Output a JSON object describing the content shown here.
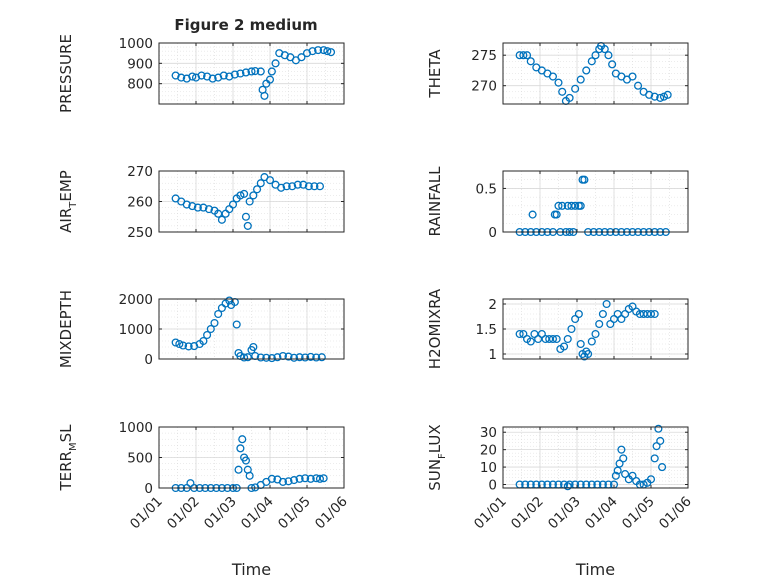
{
  "figure": {
    "title": "Figure 2 medium"
  },
  "x_axis": {
    "label": "Time",
    "ticks": [
      "01/01",
      "01/02",
      "01/03",
      "01/04",
      "01/05",
      "01/06"
    ]
  },
  "colors": {
    "marker": "#0072BD",
    "grid": "#d9d9d9",
    "axis": "#262626"
  },
  "chart_data": [
    {
      "type": "scatter",
      "id": "pressure",
      "ylabel": {
        "main": "PRESSURE",
        "sub": "",
        "tail": ""
      },
      "ylim": [
        700,
        1000
      ],
      "yticks": [
        800,
        900,
        1000
      ],
      "xlim": [
        0,
        5
      ],
      "grid": true,
      "points": [
        [
          0.45,
          840
        ],
        [
          0.6,
          830
        ],
        [
          0.75,
          825
        ],
        [
          0.9,
          835
        ],
        [
          1.0,
          830
        ],
        [
          1.15,
          840
        ],
        [
          1.3,
          835
        ],
        [
          1.45,
          825
        ],
        [
          1.6,
          830
        ],
        [
          1.75,
          840
        ],
        [
          1.9,
          835
        ],
        [
          2.05,
          845
        ],
        [
          2.2,
          850
        ],
        [
          2.35,
          855
        ],
        [
          2.5,
          860
        ],
        [
          2.6,
          862
        ],
        [
          2.75,
          860
        ],
        [
          2.8,
          770
        ],
        [
          2.85,
          740
        ],
        [
          2.9,
          800
        ],
        [
          3.0,
          820
        ],
        [
          3.05,
          860
        ],
        [
          3.15,
          900
        ],
        [
          3.25,
          950
        ],
        [
          3.4,
          940
        ],
        [
          3.55,
          930
        ],
        [
          3.7,
          915
        ],
        [
          3.85,
          930
        ],
        [
          4.0,
          950
        ],
        [
          4.15,
          960
        ],
        [
          4.3,
          965
        ],
        [
          4.45,
          965
        ],
        [
          4.55,
          960
        ],
        [
          4.65,
          955
        ]
      ]
    },
    {
      "type": "scatter",
      "id": "theta",
      "ylabel": {
        "main": "THETA",
        "sub": "",
        "tail": ""
      },
      "ylim": [
        267,
        277
      ],
      "yticks": [
        270,
        275
      ],
      "xlim": [
        0,
        5
      ],
      "grid": true,
      "points": [
        [
          0.45,
          275
        ],
        [
          0.55,
          275
        ],
        [
          0.65,
          275
        ],
        [
          0.75,
          274
        ],
        [
          0.9,
          273
        ],
        [
          1.05,
          272.5
        ],
        [
          1.2,
          272
        ],
        [
          1.35,
          271.5
        ],
        [
          1.5,
          270.5
        ],
        [
          1.6,
          269
        ],
        [
          1.7,
          267.5
        ],
        [
          1.8,
          268
        ],
        [
          1.95,
          269.5
        ],
        [
          2.1,
          271
        ],
        [
          2.25,
          272.5
        ],
        [
          2.4,
          274
        ],
        [
          2.5,
          275
        ],
        [
          2.6,
          276
        ],
        [
          2.65,
          276.5
        ],
        [
          2.75,
          276
        ],
        [
          2.85,
          275
        ],
        [
          2.95,
          273.5
        ],
        [
          3.05,
          272
        ],
        [
          3.2,
          271.5
        ],
        [
          3.35,
          271
        ],
        [
          3.5,
          271.5
        ],
        [
          3.65,
          270
        ],
        [
          3.8,
          269
        ],
        [
          3.95,
          268.5
        ],
        [
          4.1,
          268.2
        ],
        [
          4.25,
          268
        ],
        [
          4.35,
          268.2
        ],
        [
          4.45,
          268.5
        ]
      ]
    },
    {
      "type": "scatter",
      "id": "air_temp",
      "ylabel": {
        "main": "AIR",
        "sub": "T",
        "tail": "EMP"
      },
      "ylim": [
        250,
        270
      ],
      "yticks": [
        250,
        260,
        270
      ],
      "xlim": [
        0,
        5
      ],
      "grid": true,
      "points": [
        [
          0.45,
          261
        ],
        [
          0.6,
          260
        ],
        [
          0.75,
          259
        ],
        [
          0.9,
          258.5
        ],
        [
          1.05,
          258
        ],
        [
          1.2,
          258
        ],
        [
          1.35,
          257.5
        ],
        [
          1.5,
          257
        ],
        [
          1.6,
          256
        ],
        [
          1.7,
          254
        ],
        [
          1.8,
          256
        ],
        [
          1.9,
          257.5
        ],
        [
          2.0,
          259
        ],
        [
          2.1,
          261
        ],
        [
          2.2,
          262
        ],
        [
          2.3,
          262.5
        ],
        [
          2.35,
          255
        ],
        [
          2.4,
          252
        ],
        [
          2.45,
          260
        ],
        [
          2.55,
          262
        ],
        [
          2.65,
          264
        ],
        [
          2.75,
          266
        ],
        [
          2.85,
          268
        ],
        [
          3.0,
          267
        ],
        [
          3.15,
          265.5
        ],
        [
          3.3,
          264.5
        ],
        [
          3.45,
          265
        ],
        [
          3.6,
          265
        ],
        [
          3.75,
          265.5
        ],
        [
          3.9,
          265.5
        ],
        [
          4.05,
          265
        ],
        [
          4.2,
          265
        ],
        [
          4.35,
          265
        ]
      ]
    },
    {
      "type": "scatter",
      "id": "rainfall",
      "ylabel": {
        "main": "RAINFALL",
        "sub": "",
        "tail": ""
      },
      "ylim": [
        0,
        0.7
      ],
      "yticks": [
        0,
        0.5
      ],
      "xlim": [
        0,
        5
      ],
      "grid": true,
      "points": [
        [
          0.45,
          0
        ],
        [
          0.6,
          0
        ],
        [
          0.75,
          0
        ],
        [
          0.8,
          0.2
        ],
        [
          0.9,
          0
        ],
        [
          1.05,
          0
        ],
        [
          1.2,
          0
        ],
        [
          1.35,
          0
        ],
        [
          1.4,
          0.2
        ],
        [
          1.45,
          0.2
        ],
        [
          1.5,
          0.3
        ],
        [
          1.55,
          0
        ],
        [
          1.6,
          0.3
        ],
        [
          1.7,
          0
        ],
        [
          1.75,
          0.3
        ],
        [
          1.8,
          0
        ],
        [
          1.85,
          0.3
        ],
        [
          1.9,
          0
        ],
        [
          1.95,
          0.3
        ],
        [
          2.05,
          0.3
        ],
        [
          2.1,
          0.3
        ],
        [
          2.15,
          0.6
        ],
        [
          2.2,
          0.6
        ],
        [
          2.3,
          0
        ],
        [
          2.45,
          0
        ],
        [
          2.6,
          0
        ],
        [
          2.75,
          0
        ],
        [
          2.9,
          0
        ],
        [
          3.05,
          0
        ],
        [
          3.2,
          0
        ],
        [
          3.35,
          0
        ],
        [
          3.5,
          0
        ],
        [
          3.65,
          0
        ],
        [
          3.8,
          0
        ],
        [
          3.95,
          0
        ],
        [
          4.1,
          0
        ],
        [
          4.25,
          0
        ],
        [
          4.4,
          0
        ]
      ]
    },
    {
      "type": "scatter",
      "id": "mixdepth",
      "ylabel": {
        "main": "MIXDEPTH",
        "sub": "",
        "tail": ""
      },
      "ylim": [
        0,
        2000
      ],
      "yticks": [
        0,
        1000,
        2000
      ],
      "xlim": [
        0,
        5
      ],
      "grid": true,
      "points": [
        [
          0.45,
          550
        ],
        [
          0.55,
          500
        ],
        [
          0.65,
          450
        ],
        [
          0.8,
          420
        ],
        [
          0.95,
          430
        ],
        [
          1.1,
          500
        ],
        [
          1.2,
          600
        ],
        [
          1.3,
          800
        ],
        [
          1.4,
          1000
        ],
        [
          1.5,
          1200
        ],
        [
          1.6,
          1500
        ],
        [
          1.7,
          1700
        ],
        [
          1.8,
          1850
        ],
        [
          1.9,
          1950
        ],
        [
          1.95,
          1800
        ],
        [
          2.05,
          1900
        ],
        [
          2.1,
          1150
        ],
        [
          2.15,
          200
        ],
        [
          2.2,
          100
        ],
        [
          2.3,
          50
        ],
        [
          2.4,
          60
        ],
        [
          2.5,
          300
        ],
        [
          2.55,
          400
        ],
        [
          2.6,
          100
        ],
        [
          2.75,
          50
        ],
        [
          2.9,
          40
        ],
        [
          3.05,
          30
        ],
        [
          3.2,
          60
        ],
        [
          3.35,
          100
        ],
        [
          3.5,
          80
        ],
        [
          3.65,
          40
        ],
        [
          3.8,
          60
        ],
        [
          3.95,
          50
        ],
        [
          4.1,
          70
        ],
        [
          4.25,
          50
        ],
        [
          4.4,
          60
        ]
      ]
    },
    {
      "type": "scatter",
      "id": "h2omixra",
      "ylabel": {
        "main": "H2OMIXRA",
        "sub": "",
        "tail": ""
      },
      "ylim": [
        0.9,
        2.1
      ],
      "yticks": [
        1,
        1.5,
        2
      ],
      "xlim": [
        0,
        5
      ],
      "grid": true,
      "points": [
        [
          0.45,
          1.4
        ],
        [
          0.55,
          1.4
        ],
        [
          0.65,
          1.3
        ],
        [
          0.75,
          1.25
        ],
        [
          0.85,
          1.4
        ],
        [
          0.95,
          1.3
        ],
        [
          1.05,
          1.4
        ],
        [
          1.15,
          1.3
        ],
        [
          1.25,
          1.3
        ],
        [
          1.35,
          1.3
        ],
        [
          1.45,
          1.3
        ],
        [
          1.55,
          1.1
        ],
        [
          1.65,
          1.15
        ],
        [
          1.75,
          1.3
        ],
        [
          1.85,
          1.5
        ],
        [
          1.95,
          1.7
        ],
        [
          2.05,
          1.8
        ],
        [
          2.1,
          1.2
        ],
        [
          2.15,
          1.0
        ],
        [
          2.2,
          0.95
        ],
        [
          2.25,
          1.05
        ],
        [
          2.3,
          1.0
        ],
        [
          2.4,
          1.25
        ],
        [
          2.5,
          1.4
        ],
        [
          2.6,
          1.6
        ],
        [
          2.7,
          1.8
        ],
        [
          2.8,
          2.0
        ],
        [
          2.9,
          1.6
        ],
        [
          3.0,
          1.7
        ],
        [
          3.1,
          1.8
        ],
        [
          3.2,
          1.7
        ],
        [
          3.3,
          1.8
        ],
        [
          3.4,
          1.9
        ],
        [
          3.5,
          1.95
        ],
        [
          3.6,
          1.85
        ],
        [
          3.7,
          1.8
        ],
        [
          3.8,
          1.8
        ],
        [
          3.9,
          1.8
        ],
        [
          4.0,
          1.8
        ],
        [
          4.1,
          1.8
        ]
      ]
    },
    {
      "type": "scatter",
      "id": "terr_msl",
      "ylabel": {
        "main": "TERR",
        "sub": "M",
        "tail": "SL"
      },
      "ylim": [
        0,
        1000
      ],
      "yticks": [
        0,
        500,
        1000
      ],
      "xlim": [
        0,
        5
      ],
      "grid": true,
      "points": [
        [
          0.45,
          0
        ],
        [
          0.6,
          0
        ],
        [
          0.75,
          0
        ],
        [
          0.85,
          80
        ],
        [
          0.95,
          0
        ],
        [
          1.1,
          0
        ],
        [
          1.25,
          0
        ],
        [
          1.4,
          0
        ],
        [
          1.55,
          0
        ],
        [
          1.7,
          0
        ],
        [
          1.85,
          0
        ],
        [
          2.0,
          0
        ],
        [
          2.1,
          0
        ],
        [
          2.15,
          300
        ],
        [
          2.2,
          650
        ],
        [
          2.25,
          800
        ],
        [
          2.3,
          500
        ],
        [
          2.35,
          450
        ],
        [
          2.4,
          300
        ],
        [
          2.45,
          200
        ],
        [
          2.5,
          0
        ],
        [
          2.6,
          10
        ],
        [
          2.75,
          50
        ],
        [
          2.9,
          100
        ],
        [
          3.05,
          150
        ],
        [
          3.2,
          140
        ],
        [
          3.35,
          100
        ],
        [
          3.5,
          110
        ],
        [
          3.65,
          130
        ],
        [
          3.8,
          150
        ],
        [
          3.95,
          160
        ],
        [
          4.1,
          150
        ],
        [
          4.25,
          160
        ],
        [
          4.35,
          150
        ],
        [
          4.45,
          160
        ]
      ]
    },
    {
      "type": "scatter",
      "id": "sunflux",
      "ylabel": {
        "main": "SUN",
        "sub": "F",
        "tail": "LUX"
      },
      "ylim": [
        -2,
        33
      ],
      "yticks": [
        0,
        10,
        20,
        30
      ],
      "xlim": [
        0,
        5
      ],
      "grid": true,
      "points": [
        [
          0.45,
          0
        ],
        [
          0.6,
          0
        ],
        [
          0.75,
          0
        ],
        [
          0.9,
          0
        ],
        [
          1.05,
          0
        ],
        [
          1.2,
          0
        ],
        [
          1.35,
          0
        ],
        [
          1.5,
          0
        ],
        [
          1.65,
          0
        ],
        [
          1.75,
          -1
        ],
        [
          1.8,
          0
        ],
        [
          1.95,
          0
        ],
        [
          2.1,
          0
        ],
        [
          2.25,
          0
        ],
        [
          2.4,
          0
        ],
        [
          2.55,
          0
        ],
        [
          2.7,
          0
        ],
        [
          2.85,
          0
        ],
        [
          3.0,
          0
        ],
        [
          3.05,
          5
        ],
        [
          3.1,
          8
        ],
        [
          3.15,
          12
        ],
        [
          3.2,
          20
        ],
        [
          3.25,
          15
        ],
        [
          3.3,
          6
        ],
        [
          3.4,
          3
        ],
        [
          3.5,
          5
        ],
        [
          3.6,
          2
        ],
        [
          3.7,
          0
        ],
        [
          3.8,
          0
        ],
        [
          3.9,
          1
        ],
        [
          4.0,
          3
        ],
        [
          4.1,
          15
        ],
        [
          4.15,
          22
        ],
        [
          4.2,
          32
        ],
        [
          4.25,
          25
        ],
        [
          4.3,
          10
        ]
      ]
    }
  ]
}
